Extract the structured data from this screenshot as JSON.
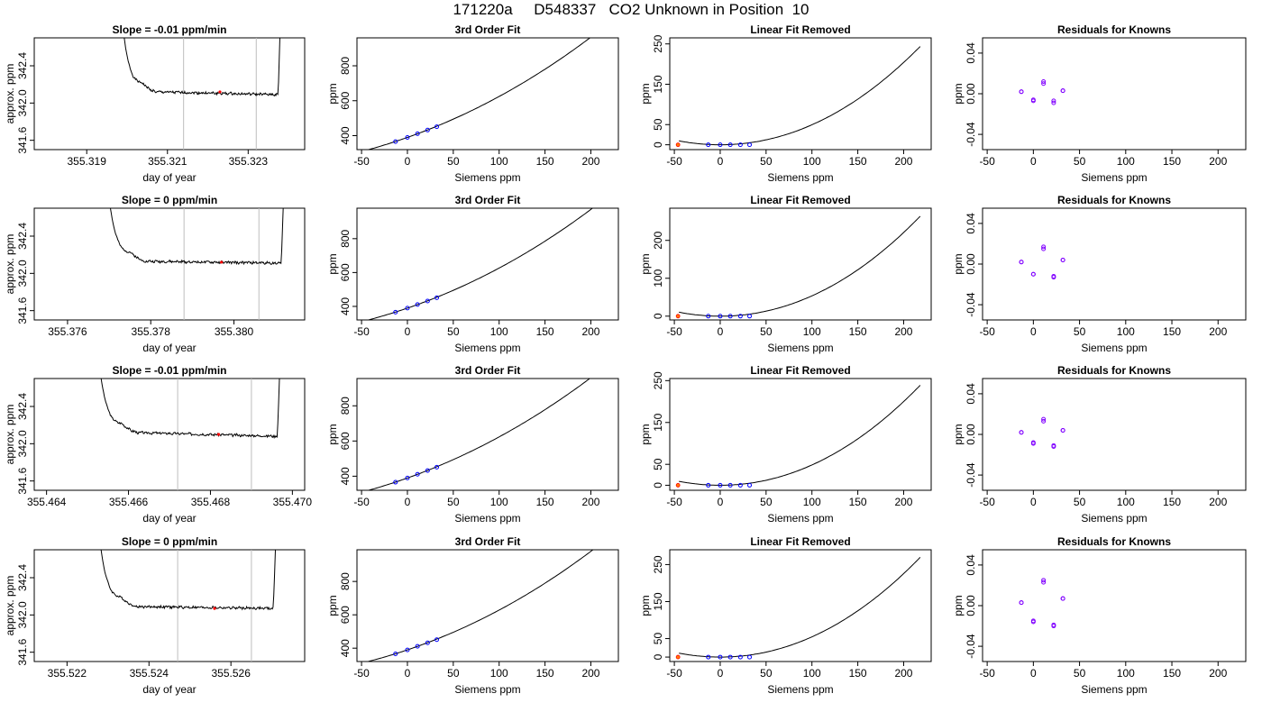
{
  "title": "171220a     D548337   CO2 Unknown in Position  10",
  "colors": {
    "trace": "#000000",
    "marker_red": "#ff0000",
    "known_points": "#0000ff",
    "residual_points": "#8000ff",
    "unknown_point": "#ff7f00",
    "window_lines": "#bebebe"
  },
  "chart_data": [
    {
      "type": "line",
      "title": "Slope =  -0.01  ppm/min",
      "xlabel": "day of year",
      "ylabel": "approx. ppm",
      "xlim": [
        355.3177,
        355.3244
      ],
      "ylim": [
        341.5,
        342.7
      ],
      "xticks": [
        355.319,
        355.321,
        355.323
      ],
      "xtick_labels": [
        "355.319",
        "355.321",
        "355.323"
      ],
      "yticks": [
        341.6,
        342.0,
        342.4
      ],
      "ytick_labels": [
        "341.6",
        "342.0",
        "342.4"
      ],
      "window": [
        355.3214,
        355.3232
      ],
      "mark": {
        "x": 355.3223,
        "y": 342.12
      },
      "trace": {
        "start": 355.3199,
        "end": 355.3238,
        "high": 342.8,
        "level": 342.12,
        "final": 342.09,
        "seed": 1
      }
    },
    {
      "type": "line",
      "title": "3rd Order Fit",
      "xlabel": "Siemens ppm",
      "ylabel": "ppm",
      "xlim": [
        -55,
        230
      ],
      "ylim": [
        320,
        960
      ],
      "xticks": [
        -50,
        0,
        50,
        100,
        150,
        200
      ],
      "xtick_labels": [
        "-50",
        "0",
        "50",
        "100",
        "150",
        "200"
      ],
      "yticks": [
        400,
        600,
        800
      ],
      "ytick_labels": [
        "400",
        "600",
        "800"
      ],
      "curve": {
        "from": -45,
        "to": 218,
        "c": [
          389.8,
          1.85,
          0.0048,
          1.5e-06
        ]
      },
      "known_points": {
        "x": [
          -13,
          0,
          11,
          22,
          32
        ],
        "y": [
          365.8,
          389.8,
          411,
          432,
          451
        ]
      },
      "unknown_point": {
        "x": -46,
        "y": 303
      }
    },
    {
      "type": "line",
      "title": "Linear Fit Removed",
      "xlabel": "Siemens ppm",
      "ylabel": "ppm",
      "xlim": [
        -55,
        230
      ],
      "ylim": [
        -12,
        265
      ],
      "xticks": [
        -50,
        0,
        50,
        100,
        150,
        200
      ],
      "xtick_labels": [
        "-50",
        "0",
        "50",
        "100",
        "150",
        "200"
      ],
      "yticks": [
        0,
        50,
        150,
        250
      ],
      "ytick_labels": [
        "0",
        "50",
        "150",
        "250"
      ],
      "curve": {
        "from": -45,
        "to": 218,
        "c": [
          0,
          0,
          0.0048,
          1.5e-06
        ]
      },
      "known_points": {
        "x": [
          -13,
          0,
          11,
          22,
          32
        ],
        "y": [
          0,
          0,
          0,
          0,
          0
        ]
      },
      "unknown_point": {
        "x": -46,
        "y": 0
      }
    },
    {
      "type": "scatter",
      "title": "Residuals for Knowns",
      "xlabel": "Siemens ppm",
      "ylabel": "ppm",
      "xlim": [
        -55,
        230
      ],
      "ylim": [
        -0.055,
        0.055
      ],
      "xticks": [
        -50,
        0,
        50,
        100,
        150,
        200
      ],
      "xtick_labels": [
        "-50",
        "0",
        "50",
        "100",
        "150",
        "200"
      ],
      "yticks": [
        -0.04,
        0,
        0.04
      ],
      "ytick_labels": [
        "-0.04",
        "0.00",
        "0.04"
      ],
      "points": {
        "x": [
          -13,
          -13,
          0,
          0,
          11,
          11,
          22,
          22,
          32,
          32
        ],
        "y": [
          0.002,
          0.002,
          -0.006,
          -0.007,
          0.01,
          0.012,
          -0.009,
          -0.007,
          0.003,
          0.003
        ]
      }
    },
    {
      "type": "line",
      "title": "Slope =  0  ppm/min",
      "xlabel": "day of year",
      "ylabel": "approx. ppm",
      "xlim": [
        355.3752,
        355.3817
      ],
      "ylim": [
        341.5,
        342.7
      ],
      "xticks": [
        355.376,
        355.378,
        355.38
      ],
      "xtick_labels": [
        "355.376",
        "355.378",
        "355.380"
      ],
      "yticks": [
        341.6,
        342.0,
        342.4
      ],
      "ytick_labels": [
        "341.6",
        "342.0",
        "342.4"
      ],
      "window": [
        355.3788,
        355.3806
      ],
      "mark": {
        "x": 355.3797,
        "y": 342.12
      },
      "trace": {
        "start": 355.377,
        "end": 355.3812,
        "high": 342.8,
        "level": 342.13,
        "final": 342.11,
        "seed": 2
      }
    },
    {
      "type": "line",
      "title": "3rd Order Fit",
      "xlabel": "Siemens ppm",
      "ylabel": "ppm",
      "xlim": [
        -55,
        230
      ],
      "ylim": [
        320,
        980
      ],
      "xticks": [
        -50,
        0,
        50,
        100,
        150,
        200
      ],
      "xtick_labels": [
        "-50",
        "0",
        "50",
        "100",
        "150",
        "200"
      ],
      "yticks": [
        400,
        600,
        800
      ],
      "ytick_labels": [
        "400",
        "600",
        "800"
      ],
      "curve": {
        "from": -45,
        "to": 218,
        "c": [
          389.8,
          1.85,
          0.005,
          1.6e-06
        ]
      },
      "known_points": {
        "x": [
          -13,
          0,
          11,
          22,
          32
        ],
        "y": [
          365.8,
          389.8,
          411,
          432,
          451
        ]
      },
      "unknown_point": {
        "x": -46,
        "y": 303
      }
    },
    {
      "type": "line",
      "title": "Linear Fit Removed",
      "xlabel": "Siemens ppm",
      "ylabel": "ppm",
      "xlim": [
        -55,
        230
      ],
      "ylim": [
        -10,
        285
      ],
      "xticks": [
        -50,
        0,
        50,
        100,
        150,
        200
      ],
      "xtick_labels": [
        "-50",
        "0",
        "50",
        "100",
        "150",
        "200"
      ],
      "yticks": [
        0,
        100,
        200
      ],
      "ytick_labels": [
        "0",
        "100",
        "200"
      ],
      "curve": {
        "from": -45,
        "to": 218,
        "c": [
          0,
          0,
          0.0052,
          1.6e-06
        ]
      },
      "known_points": {
        "x": [
          -13,
          0,
          11,
          22,
          32
        ],
        "y": [
          0,
          0,
          0,
          0,
          0
        ]
      },
      "unknown_point": {
        "x": -46,
        "y": 0
      }
    },
    {
      "type": "scatter",
      "title": "Residuals for Knowns",
      "xlabel": "Siemens ppm",
      "ylabel": "ppm",
      "xlim": [
        -55,
        230
      ],
      "ylim": [
        -0.055,
        0.055
      ],
      "xticks": [
        -50,
        0,
        50,
        100,
        150,
        200
      ],
      "xtick_labels": [
        "-50",
        "0",
        "50",
        "100",
        "150",
        "200"
      ],
      "yticks": [
        -0.04,
        0,
        0.04
      ],
      "ytick_labels": [
        "-0.04",
        "0.00",
        "0.04"
      ],
      "points": {
        "x": [
          -13,
          -13,
          0,
          0,
          11,
          11,
          22,
          22,
          32,
          32
        ],
        "y": [
          0.002,
          0.002,
          -0.01,
          -0.01,
          0.015,
          0.017,
          -0.012,
          -0.013,
          0.004,
          0.004
        ]
      }
    },
    {
      "type": "line",
      "title": "Slope =  -0.01  ppm/min",
      "xlabel": "day of year",
      "ylabel": "approx. ppm",
      "xlim": [
        355.4637,
        355.4703
      ],
      "ylim": [
        341.5,
        342.7
      ],
      "xticks": [
        355.464,
        355.466,
        355.468,
        355.47
      ],
      "xtick_labels": [
        "355.464",
        "355.466",
        "355.468",
        "355.470"
      ],
      "yticks": [
        341.6,
        342.0,
        342.4
      ],
      "ytick_labels": [
        "341.6",
        "342.0",
        "342.4"
      ],
      "window": [
        355.4672,
        355.469
      ],
      "mark": {
        "x": 355.4682,
        "y": 342.1
      },
      "trace": {
        "start": 355.4653,
        "end": 355.4697,
        "high": 342.8,
        "level": 342.12,
        "final": 342.08,
        "seed": 3
      }
    },
    {
      "type": "line",
      "title": "3rd Order Fit",
      "xlabel": "Siemens ppm",
      "ylabel": "ppm",
      "xlim": [
        -55,
        230
      ],
      "ylim": [
        320,
        955
      ],
      "xticks": [
        -50,
        0,
        50,
        100,
        150,
        200
      ],
      "xtick_labels": [
        "-50",
        "0",
        "50",
        "100",
        "150",
        "200"
      ],
      "yticks": [
        400,
        600,
        800
      ],
      "ytick_labels": [
        "400",
        "600",
        "800"
      ],
      "curve": {
        "from": -45,
        "to": 218,
        "c": [
          389.8,
          1.85,
          0.0047,
          1.5e-06
        ]
      },
      "known_points": {
        "x": [
          -13,
          0,
          11,
          22,
          32
        ],
        "y": [
          365.8,
          389.8,
          411,
          432,
          451
        ]
      },
      "unknown_point": {
        "x": -46,
        "y": 303
      }
    },
    {
      "type": "line",
      "title": "Linear Fit Removed",
      "xlabel": "Siemens ppm",
      "ylabel": "ppm",
      "xlim": [
        -55,
        230
      ],
      "ylim": [
        -12,
        255
      ],
      "xticks": [
        -50,
        0,
        50,
        100,
        150,
        200
      ],
      "xtick_labels": [
        "-50",
        "0",
        "50",
        "100",
        "150",
        "200"
      ],
      "yticks": [
        0,
        50,
        150,
        250
      ],
      "ytick_labels": [
        "0",
        "50",
        "150",
        "250"
      ],
      "curve": {
        "from": -45,
        "to": 218,
        "c": [
          0,
          0,
          0.0047,
          1.5e-06
        ]
      },
      "known_points": {
        "x": [
          -13,
          0,
          11,
          22,
          32
        ],
        "y": [
          0,
          0,
          0,
          0,
          0
        ]
      },
      "unknown_point": {
        "x": -46,
        "y": 0
      }
    },
    {
      "type": "scatter",
      "title": "Residuals for Knowns",
      "xlabel": "Siemens ppm",
      "ylabel": "ppm",
      "xlim": [
        -55,
        230
      ],
      "ylim": [
        -0.055,
        0.055
      ],
      "xticks": [
        -50,
        0,
        50,
        100,
        150,
        200
      ],
      "xtick_labels": [
        "-50",
        "0",
        "50",
        "100",
        "150",
        "200"
      ],
      "yticks": [
        -0.04,
        0,
        0.04
      ],
      "ytick_labels": [
        "-0.04",
        "0.00",
        "0.04"
      ],
      "points": {
        "x": [
          -13,
          -13,
          0,
          0,
          11,
          11,
          22,
          22,
          32,
          32
        ],
        "y": [
          0.002,
          0.002,
          -0.008,
          -0.009,
          0.013,
          0.015,
          -0.011,
          -0.012,
          0.004,
          0.004
        ]
      }
    },
    {
      "type": "line",
      "title": "Slope =  0  ppm/min",
      "xlabel": "day of year",
      "ylabel": "approx. ppm",
      "xlim": [
        355.5212,
        355.5278
      ],
      "ylim": [
        341.5,
        342.7
      ],
      "xticks": [
        355.522,
        355.524,
        355.526
      ],
      "xtick_labels": [
        "355.522",
        "355.524",
        "355.526"
      ],
      "yticks": [
        341.6,
        342.0,
        342.4
      ],
      "ytick_labels": [
        "341.6",
        "342.0",
        "342.4"
      ],
      "window": [
        355.5247,
        355.5265
      ],
      "mark": {
        "x": 355.5256,
        "y": 342.07
      },
      "trace": {
        "start": 355.5228,
        "end": 355.5271,
        "high": 342.8,
        "level": 342.09,
        "final": 342.07,
        "seed": 4
      }
    },
    {
      "type": "line",
      "title": "3rd Order Fit",
      "xlabel": "Siemens ppm",
      "ylabel": "ppm",
      "xlim": [
        -55,
        230
      ],
      "ylim": [
        320,
        990
      ],
      "xticks": [
        -50,
        0,
        50,
        100,
        150,
        200
      ],
      "xtick_labels": [
        "-50",
        "0",
        "50",
        "100",
        "150",
        "200"
      ],
      "yticks": [
        400,
        600,
        800
      ],
      "ytick_labels": [
        "400",
        "600",
        "800"
      ],
      "curve": {
        "from": -45,
        "to": 218,
        "c": [
          389.8,
          1.85,
          0.0052,
          1.6e-06
        ]
      },
      "known_points": {
        "x": [
          -13,
          0,
          11,
          22,
          32
        ],
        "y": [
          365.8,
          389.8,
          411,
          432,
          451
        ]
      },
      "unknown_point": {
        "x": -46,
        "y": 303
      }
    },
    {
      "type": "line",
      "title": "Linear Fit Removed",
      "xlabel": "Siemens ppm",
      "ylabel": "ppm",
      "xlim": [
        -55,
        230
      ],
      "ylim": [
        -12,
        290
      ],
      "xticks": [
        -50,
        0,
        50,
        100,
        150,
        200
      ],
      "xtick_labels": [
        "-50",
        "0",
        "50",
        "100",
        "150",
        "200"
      ],
      "yticks": [
        0,
        50,
        150,
        250
      ],
      "ytick_labels": [
        "0",
        "50",
        "150",
        "250"
      ],
      "curve": {
        "from": -45,
        "to": 218,
        "c": [
          0,
          0,
          0.0053,
          1.7e-06
        ]
      },
      "known_points": {
        "x": [
          -13,
          0,
          11,
          22,
          32
        ],
        "y": [
          0,
          0,
          0,
          0,
          0
        ]
      },
      "unknown_point": {
        "x": -46,
        "y": 0
      }
    },
    {
      "type": "scatter",
      "title": "Residuals for Knowns",
      "xlabel": "Siemens ppm",
      "ylabel": "ppm",
      "xlim": [
        -55,
        230
      ],
      "ylim": [
        -0.055,
        0.055
      ],
      "xticks": [
        -50,
        0,
        50,
        100,
        150,
        200
      ],
      "xtick_labels": [
        "-50",
        "0",
        "50",
        "100",
        "150",
        "200"
      ],
      "yticks": [
        -0.04,
        0,
        0.04
      ],
      "ytick_labels": [
        "-0.04",
        "0.00",
        "0.04"
      ],
      "points": {
        "x": [
          -13,
          -13,
          0,
          0,
          11,
          11,
          22,
          22,
          32,
          32
        ],
        "y": [
          0.003,
          0.003,
          -0.015,
          -0.016,
          0.023,
          0.025,
          -0.019,
          -0.02,
          0.007,
          0.007
        ]
      }
    }
  ]
}
